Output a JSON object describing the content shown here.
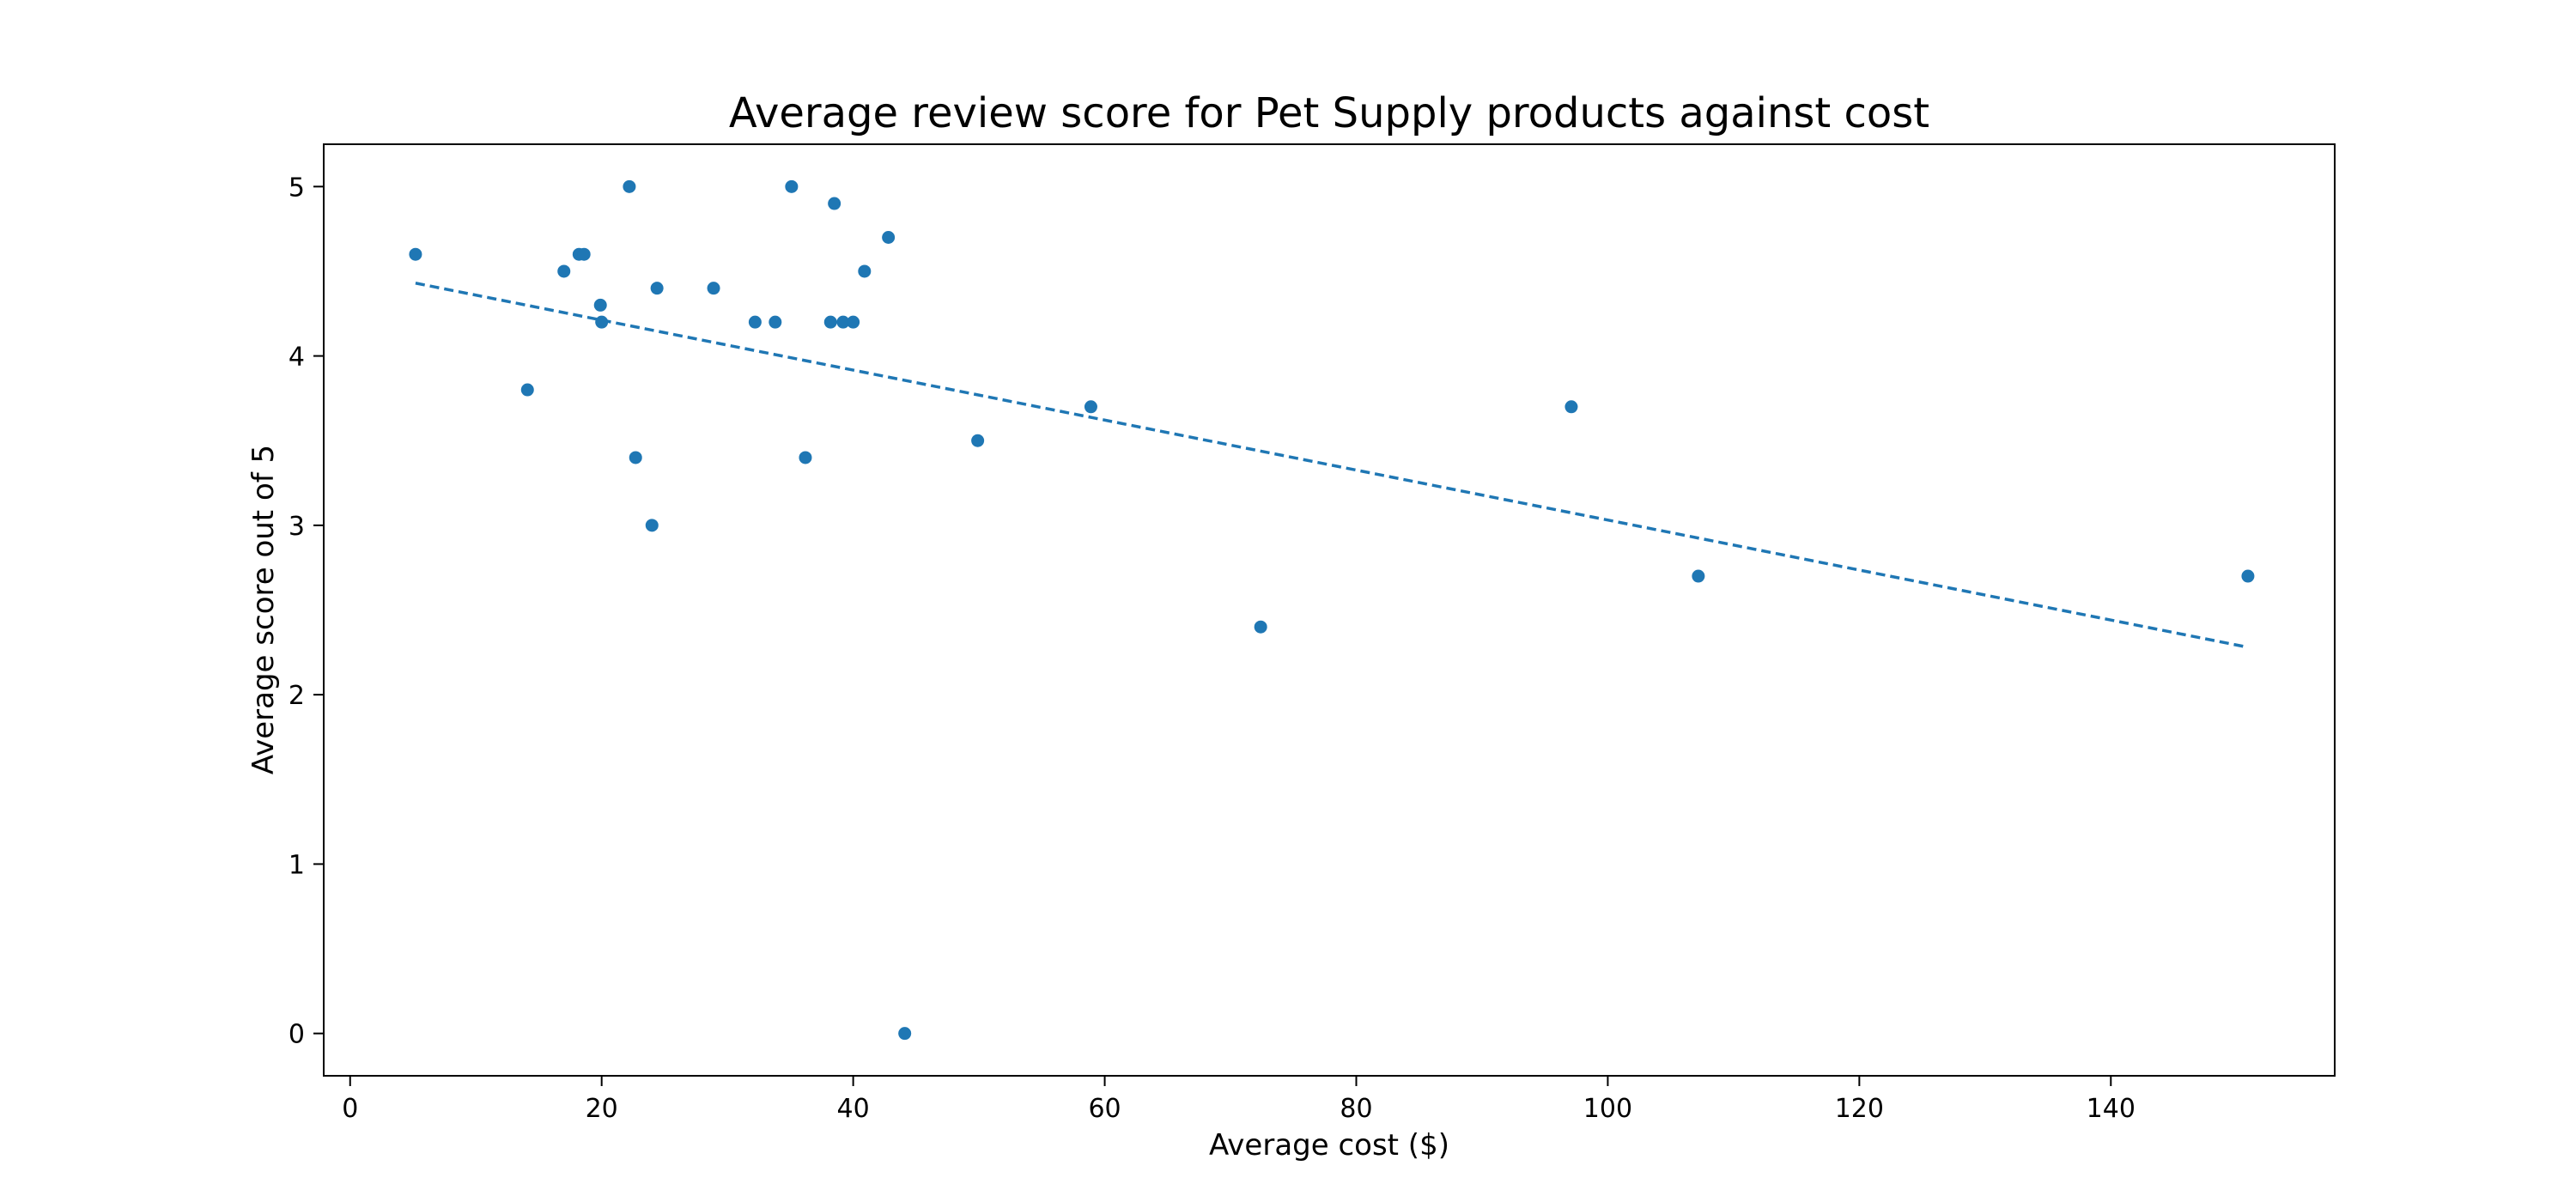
{
  "chart_data": {
    "type": "scatter",
    "title": "Average review score for Pet Supply products against cost",
    "xlabel": "Average cost ($)",
    "ylabel": "Average score out of 5",
    "xlim": [
      -2.1,
      157.8
    ],
    "ylim": [
      -0.25,
      5.25
    ],
    "xticks": [
      0,
      20,
      40,
      60,
      80,
      100,
      120,
      140
    ],
    "yticks": [
      0,
      1,
      2,
      3,
      4,
      5
    ],
    "grid": false,
    "legend": "none",
    "colors": {
      "point": "#1f77b4",
      "trendline": "#1f77b4",
      "axes": "#000000"
    },
    "series": [
      {
        "points": [
          [
            5.2,
            4.6
          ],
          [
            14.1,
            3.8
          ],
          [
            17.0,
            4.5
          ],
          [
            18.2,
            4.6
          ],
          [
            18.6,
            4.6
          ],
          [
            19.9,
            4.3
          ],
          [
            20.0,
            4.2
          ],
          [
            22.2,
            5.0
          ],
          [
            22.7,
            3.4
          ],
          [
            24.0,
            3.0
          ],
          [
            24.4,
            4.4
          ],
          [
            28.9,
            4.4
          ],
          [
            32.2,
            4.2
          ],
          [
            33.8,
            4.2
          ],
          [
            35.1,
            5.0
          ],
          [
            36.2,
            3.4
          ],
          [
            38.2,
            4.2
          ],
          [
            38.5,
            4.9
          ],
          [
            39.2,
            4.2
          ],
          [
            40.0,
            4.2
          ],
          [
            40.9,
            4.5
          ],
          [
            42.8,
            4.7
          ],
          [
            44.1,
            0.0
          ],
          [
            49.9,
            3.5
          ],
          [
            58.9,
            3.7
          ],
          [
            72.4,
            2.4
          ],
          [
            97.1,
            3.7
          ],
          [
            107.2,
            2.7
          ],
          [
            150.9,
            2.7
          ]
        ]
      }
    ],
    "trendline": {
      "style": "dashed",
      "points": [
        [
          5.2,
          4.43
        ],
        [
          150.9,
          2.28
        ]
      ]
    }
  }
}
